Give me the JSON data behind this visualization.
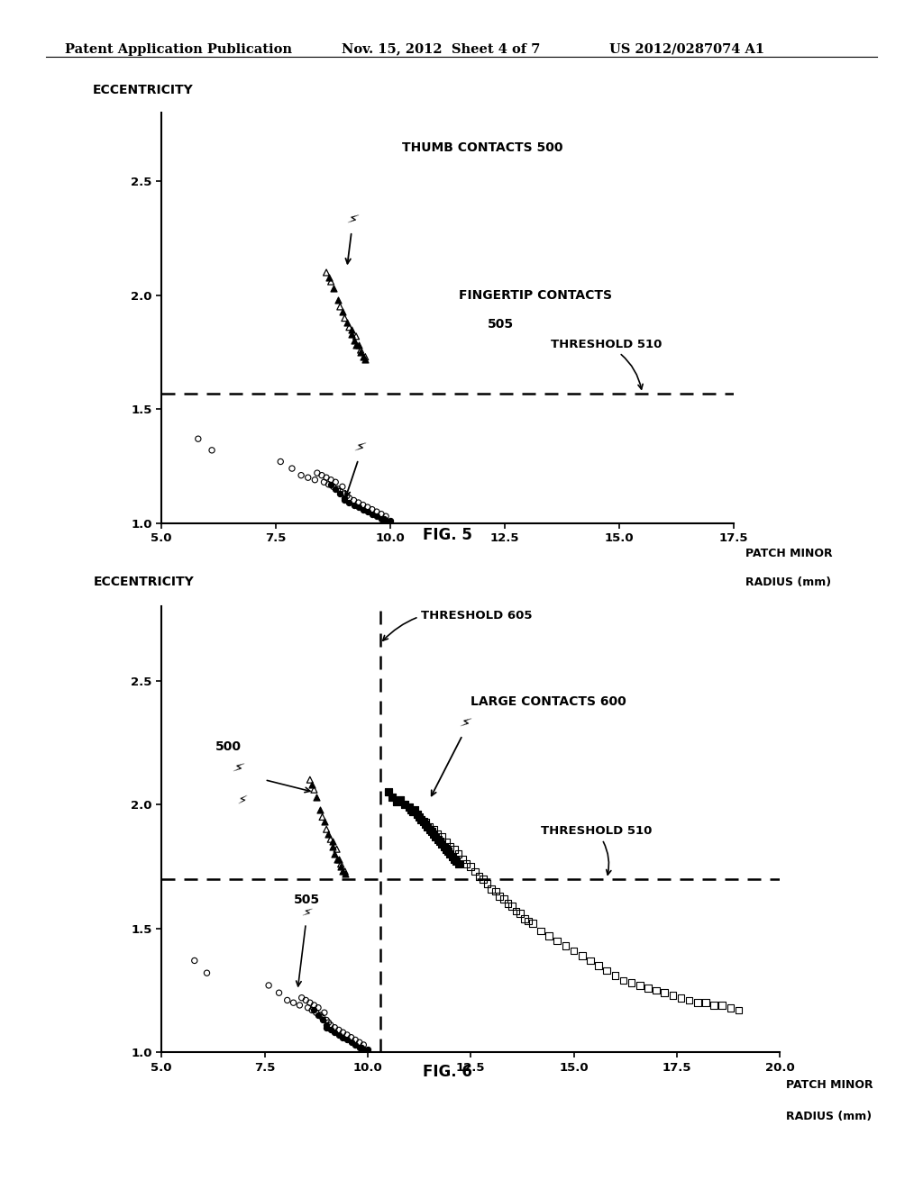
{
  "header_left": "Patent Application Publication",
  "header_mid": "Nov. 15, 2012  Sheet 4 of 7",
  "header_right": "US 2012/0287074 A1",
  "fig5": {
    "title": "FIG. 5",
    "ylabel": "ECCENTRICITY",
    "xlabel_line1": "PATCH MINOR",
    "xlabel_line2": "RADIUS (mm)",
    "xlim": [
      5.0,
      17.5
    ],
    "ylim": [
      1.0,
      2.8
    ],
    "xticks": [
      5.0,
      7.5,
      10.0,
      12.5,
      15.0,
      17.5
    ],
    "yticks": [
      1.0,
      1.5,
      2.0,
      2.5
    ],
    "threshold510_y": 1.57,
    "label_thumb": "THUMB CONTACTS 500",
    "label_finger": "FINGERTIP CONTACTS\n505",
    "label_threshold510": "THRESHOLD 510",
    "thumb_open_x": [
      8.6,
      8.7,
      8.9,
      9.0,
      9.1,
      9.25,
      9.35,
      9.45
    ],
    "thumb_open_y": [
      2.1,
      2.06,
      1.95,
      1.9,
      1.86,
      1.82,
      1.76,
      1.73
    ],
    "thumb_fill_x": [
      8.65,
      8.75,
      8.85,
      8.95,
      9.05,
      9.15,
      9.15,
      9.2,
      9.25,
      9.3,
      9.35,
      9.4,
      9.45
    ],
    "thumb_fill_y": [
      2.08,
      2.03,
      1.98,
      1.93,
      1.88,
      1.85,
      1.83,
      1.8,
      1.78,
      1.78,
      1.75,
      1.73,
      1.72
    ],
    "finger_open_x": [
      5.8,
      6.1,
      7.6,
      7.85,
      8.05,
      8.2,
      8.35,
      8.4,
      8.5,
      8.55,
      8.6,
      8.65,
      8.7,
      8.75,
      8.8,
      8.85,
      8.9,
      8.95,
      9.0,
      9.05,
      9.1,
      9.2,
      9.3,
      9.4,
      9.5,
      9.6,
      9.7,
      9.8,
      9.9
    ],
    "finger_open_y": [
      1.37,
      1.32,
      1.27,
      1.24,
      1.21,
      1.2,
      1.19,
      1.22,
      1.21,
      1.18,
      1.2,
      1.17,
      1.19,
      1.16,
      1.18,
      1.15,
      1.14,
      1.16,
      1.13,
      1.12,
      1.11,
      1.1,
      1.09,
      1.08,
      1.07,
      1.06,
      1.05,
      1.04,
      1.03
    ],
    "finger_fill_x": [
      8.7,
      8.8,
      8.9,
      9.0,
      9.0,
      9.1,
      9.2,
      9.3,
      9.4,
      9.5,
      9.6,
      9.7,
      9.8,
      9.85,
      9.9,
      10.0,
      10.0
    ],
    "finger_fill_y": [
      1.17,
      1.15,
      1.13,
      1.11,
      1.1,
      1.09,
      1.08,
      1.07,
      1.06,
      1.05,
      1.04,
      1.03,
      1.02,
      1.02,
      1.01,
      1.01,
      1.0
    ]
  },
  "fig6": {
    "title": "FIG. 6",
    "ylabel": "ECCENTRICITY",
    "xlabel_line1": "PATCH MINOR",
    "xlabel_line2": "RADIUS (mm)",
    "xlim": [
      5.0,
      20.0
    ],
    "ylim": [
      1.0,
      2.8
    ],
    "xticks": [
      5.0,
      7.5,
      10.0,
      12.5,
      15.0,
      17.5,
      20.0
    ],
    "yticks": [
      1.0,
      1.5,
      2.0,
      2.5
    ],
    "threshold510_y": 1.7,
    "threshold605_x": 10.3,
    "label_large": "LARGE CONTACTS 600",
    "label_500": "500",
    "label_505": "505",
    "label_threshold510": "THRESHOLD 510",
    "label_threshold605": "THRESHOLD 605",
    "thumb_open_x": [
      8.6,
      8.7,
      8.9,
      9.0,
      9.1,
      9.25,
      9.35,
      9.45
    ],
    "thumb_open_y": [
      2.1,
      2.06,
      1.95,
      1.9,
      1.86,
      1.82,
      1.76,
      1.73
    ],
    "thumb_fill_x": [
      8.65,
      8.75,
      8.85,
      8.95,
      9.05,
      9.15,
      9.15,
      9.2,
      9.25,
      9.3,
      9.35,
      9.4,
      9.45
    ],
    "thumb_fill_y": [
      2.08,
      2.03,
      1.98,
      1.93,
      1.88,
      1.85,
      1.83,
      1.8,
      1.78,
      1.78,
      1.75,
      1.73,
      1.72
    ],
    "finger_open_x": [
      5.8,
      6.1,
      7.6,
      7.85,
      8.05,
      8.2,
      8.35,
      8.4,
      8.5,
      8.55,
      8.6,
      8.65,
      8.7,
      8.75,
      8.8,
      8.85,
      8.9,
      8.95,
      9.0,
      9.05,
      9.1,
      9.2,
      9.3,
      9.4,
      9.5,
      9.6,
      9.7,
      9.8,
      9.9
    ],
    "finger_open_y": [
      1.37,
      1.32,
      1.27,
      1.24,
      1.21,
      1.2,
      1.19,
      1.22,
      1.21,
      1.18,
      1.2,
      1.17,
      1.19,
      1.16,
      1.18,
      1.15,
      1.14,
      1.16,
      1.13,
      1.12,
      1.11,
      1.1,
      1.09,
      1.08,
      1.07,
      1.06,
      1.05,
      1.04,
      1.03
    ],
    "finger_fill_x": [
      8.7,
      8.8,
      8.9,
      9.0,
      9.0,
      9.1,
      9.2,
      9.3,
      9.4,
      9.5,
      9.6,
      9.7,
      9.8,
      9.85,
      9.9,
      10.0,
      10.0
    ],
    "finger_fill_y": [
      1.17,
      1.15,
      1.13,
      1.11,
      1.1,
      1.09,
      1.08,
      1.07,
      1.06,
      1.05,
      1.04,
      1.03,
      1.02,
      1.02,
      1.01,
      1.01,
      1.0
    ],
    "large_fill_x": [
      10.5,
      10.6,
      10.7,
      10.8,
      10.9,
      11.0,
      11.05,
      11.1,
      11.15,
      11.2,
      11.25,
      11.3,
      11.35,
      11.4,
      11.45,
      11.5,
      11.55,
      11.6,
      11.65,
      11.7,
      11.75,
      11.8,
      11.85,
      11.9,
      11.95,
      12.0,
      12.05,
      12.1,
      12.15,
      12.2
    ],
    "large_fill_y": [
      2.05,
      2.03,
      2.01,
      2.02,
      2.0,
      1.99,
      1.98,
      1.97,
      1.98,
      1.96,
      1.95,
      1.94,
      1.93,
      1.92,
      1.91,
      1.9,
      1.89,
      1.88,
      1.87,
      1.86,
      1.85,
      1.84,
      1.83,
      1.82,
      1.81,
      1.8,
      1.79,
      1.78,
      1.77,
      1.76
    ],
    "large_open_x": [
      10.5,
      10.6,
      10.7,
      10.8,
      10.9,
      11.0,
      11.1,
      11.2,
      11.3,
      11.4,
      11.5,
      11.6,
      11.7,
      11.8,
      11.9,
      12.0,
      12.1,
      12.2,
      12.3,
      12.4,
      12.5,
      12.6,
      12.7,
      12.8,
      12.9,
      13.0,
      13.1,
      13.2,
      13.3,
      13.4,
      13.5,
      13.6,
      13.7,
      13.8,
      13.9,
      14.0,
      14.2,
      14.4,
      14.6,
      14.8,
      15.0,
      15.2,
      15.4,
      15.6,
      15.8,
      16.0,
      16.2,
      16.4,
      16.6,
      16.8,
      17.0,
      17.2,
      17.4,
      17.6,
      17.8,
      18.0,
      18.2,
      18.4,
      18.6,
      18.8,
      19.0
    ],
    "large_open_y": [
      2.05,
      2.03,
      2.01,
      2.02,
      2.0,
      1.99,
      1.97,
      1.96,
      1.94,
      1.93,
      1.91,
      1.9,
      1.88,
      1.87,
      1.85,
      1.83,
      1.82,
      1.8,
      1.78,
      1.76,
      1.75,
      1.73,
      1.71,
      1.7,
      1.68,
      1.66,
      1.65,
      1.63,
      1.62,
      1.6,
      1.59,
      1.57,
      1.56,
      1.54,
      1.53,
      1.52,
      1.49,
      1.47,
      1.45,
      1.43,
      1.41,
      1.39,
      1.37,
      1.35,
      1.33,
      1.31,
      1.29,
      1.28,
      1.27,
      1.26,
      1.25,
      1.24,
      1.23,
      1.22,
      1.21,
      1.2,
      1.2,
      1.19,
      1.19,
      1.18,
      1.17
    ]
  }
}
